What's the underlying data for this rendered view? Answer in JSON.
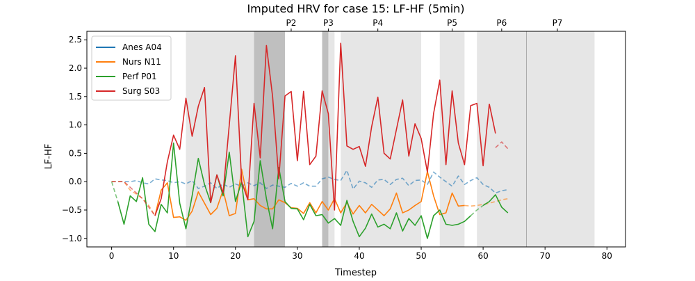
{
  "chart_data": {
    "type": "line",
    "title": "Imputed HRV for case 15: LF-HF (5min)",
    "xlabel": "Timestep",
    "ylabel": "LF-HF",
    "xlim": [
      -4,
      83
    ],
    "ylim": [
      -1.15,
      2.65
    ],
    "xticks": [
      0,
      10,
      20,
      30,
      40,
      50,
      60,
      70,
      80
    ],
    "yticks": [
      -1.0,
      -0.5,
      0.0,
      0.5,
      1.0,
      1.5,
      2.0,
      2.5
    ],
    "ytick_labels": [
      "−1.0",
      "−0.5",
      "0.0",
      "0.5",
      "1.0",
      "1.5",
      "2.0",
      "2.5"
    ],
    "legend_position": "upper-left",
    "phase_spans": [
      {
        "start": 12,
        "end": 28,
        "shade": "light"
      },
      {
        "start": 23,
        "end": 28,
        "shade": "dark"
      },
      {
        "start": 34,
        "end": 36,
        "shade": "light"
      },
      {
        "start": 34,
        "end": 35,
        "shade": "dark"
      },
      {
        "start": 37,
        "end": 50,
        "shade": "light"
      },
      {
        "start": 53,
        "end": 57,
        "shade": "light"
      },
      {
        "start": 59,
        "end": 67,
        "shade": "light"
      },
      {
        "start": 67,
        "end": 78,
        "shade": "light"
      }
    ],
    "phase_boundaries": [
      67
    ],
    "phase_labels": [
      {
        "label": "P2",
        "x": 29
      },
      {
        "label": "P3",
        "x": 35
      },
      {
        "label": "P4",
        "x": 43
      },
      {
        "label": "P5",
        "x": 55
      },
      {
        "label": "P6",
        "x": 63
      },
      {
        "label": "P7",
        "x": 72
      }
    ],
    "series": [
      {
        "name": "Anes A04",
        "color": "#1f77b4",
        "segments": [
          {
            "style": "dashed",
            "x": [
              0,
              1,
              2,
              3,
              4,
              5,
              6,
              7,
              8,
              9,
              10,
              11,
              12,
              13,
              14,
              15,
              16,
              17,
              18,
              19,
              20,
              21,
              22,
              23,
              24,
              25,
              26,
              27,
              28,
              29,
              30,
              31,
              32,
              33,
              34,
              35,
              36,
              37,
              38,
              39,
              40,
              41,
              42,
              43,
              44,
              45,
              46,
              47,
              48,
              49,
              50,
              51,
              52,
              53,
              54,
              55,
              56,
              57,
              58,
              59,
              60,
              61,
              62,
              63,
              64
            ],
            "y": [
              0.0,
              0.0,
              0.0,
              0.0,
              0.02,
              -0.02,
              -0.04,
              0.05,
              0.03,
              0.02,
              -0.02,
              0.0,
              -0.04,
              0.02,
              -0.12,
              -0.08,
              -0.02,
              -0.12,
              -0.04,
              -0.1,
              -0.04,
              -0.08,
              -0.02,
              -0.07,
              -0.02,
              -0.12,
              -0.06,
              -0.08,
              -0.1,
              -0.03,
              -0.08,
              -0.02,
              -0.08,
              -0.08,
              0.05,
              0.08,
              0.04,
              0.02,
              0.2,
              -0.13,
              0.01,
              -0.02,
              -0.1,
              0.03,
              0.04,
              -0.05,
              0.04,
              0.06,
              -0.07,
              0.02,
              0.03,
              -0.05,
              0.17,
              0.08,
              0.0,
              -0.08,
              0.1,
              -0.05,
              0.02,
              0.07,
              -0.05,
              -0.1,
              -0.2,
              -0.16,
              -0.14
            ]
          }
        ]
      },
      {
        "name": "Nurs N11",
        "color": "#ff7f0e",
        "segments": [
          {
            "style": "dashed",
            "x": [
              0,
              1,
              2,
              3,
              4,
              5,
              6,
              7
            ],
            "y": [
              0.0,
              0.0,
              0.0,
              -0.15,
              -0.22,
              -0.3,
              -0.42,
              -0.6
            ]
          },
          {
            "style": "solid",
            "x": [
              7,
              8,
              9,
              10,
              11,
              12,
              13,
              14,
              15,
              16,
              17,
              18,
              19,
              20,
              21,
              22,
              23,
              24,
              25,
              26,
              27,
              28,
              29,
              30,
              31,
              32,
              33,
              34,
              35,
              36,
              37,
              38,
              39,
              40,
              41,
              42,
              43,
              44,
              45,
              46,
              47,
              48,
              49,
              50,
              51,
              52,
              53,
              54,
              55,
              56,
              57
            ],
            "y": [
              -0.6,
              -0.15,
              -0.02,
              -0.63,
              -0.62,
              -0.68,
              -0.52,
              -0.18,
              -0.38,
              -0.58,
              -0.47,
              -0.15,
              -0.6,
              -0.56,
              0.22,
              -0.32,
              -0.3,
              -0.42,
              -0.48,
              -0.48,
              -0.32,
              -0.37,
              -0.46,
              -0.47,
              -0.56,
              -0.37,
              -0.55,
              -0.35,
              -0.5,
              -0.3,
              -0.55,
              -0.37,
              -0.57,
              -0.42,
              -0.55,
              -0.4,
              -0.5,
              -0.6,
              -0.48,
              -0.2,
              -0.55,
              -0.5,
              -0.42,
              -0.35,
              0.18,
              -0.25,
              -0.58,
              -0.55,
              -0.2,
              -0.43,
              -0.42
            ]
          },
          {
            "style": "dashed",
            "x": [
              57,
              58,
              59,
              60,
              61,
              62,
              63,
              64
            ],
            "y": [
              -0.42,
              -0.43,
              -0.42,
              -0.4,
              -0.38,
              -0.35,
              -0.32,
              -0.3
            ]
          }
        ]
      },
      {
        "name": "Perf P01",
        "color": "#2ca02c",
        "segments": [
          {
            "style": "dashed",
            "x": [
              0,
              1
            ],
            "y": [
              0.0,
              -0.35
            ]
          },
          {
            "style": "solid",
            "x": [
              1,
              2,
              3,
              4,
              5,
              6,
              7,
              8,
              9,
              10,
              11,
              12,
              13,
              14,
              15,
              16,
              17,
              18,
              19,
              20,
              21,
              22,
              23,
              24,
              25,
              26,
              27,
              28,
              29,
              30,
              31,
              32,
              33,
              34,
              35,
              36,
              37,
              38,
              39,
              40,
              41,
              42,
              43,
              44,
              45,
              46,
              47,
              48,
              49,
              50,
              51,
              52,
              53,
              54,
              55,
              56,
              57,
              58
            ],
            "y": [
              -0.35,
              -0.75,
              -0.25,
              -0.35,
              0.07,
              -0.75,
              -0.88,
              -0.4,
              -0.55,
              0.68,
              -0.38,
              -0.83,
              -0.25,
              0.41,
              -0.05,
              -0.37,
              0.12,
              -0.25,
              0.52,
              -0.35,
              0.0,
              -0.97,
              -0.7,
              0.37,
              -0.3,
              -0.83,
              0.25,
              -0.35,
              -0.47,
              -0.48,
              -0.67,
              -0.4,
              -0.6,
              -0.58,
              -0.73,
              -0.65,
              -0.77,
              -0.33,
              -0.7,
              -0.97,
              -0.82,
              -0.57,
              -0.8,
              -0.75,
              -0.83,
              -0.55,
              -0.87,
              -0.65,
              -0.77,
              -0.6,
              -1.0,
              -0.6,
              -0.5,
              -0.75,
              -0.77,
              -0.75,
              -0.7,
              -0.6
            ]
          },
          {
            "style": "dashed",
            "x": [
              58,
              59,
              60
            ],
            "y": [
              -0.6,
              -0.5,
              -0.42
            ]
          },
          {
            "style": "solid",
            "x": [
              60,
              61,
              62,
              63,
              64
            ],
            "y": [
              -0.42,
              -0.35,
              -0.23,
              -0.45,
              -0.55
            ]
          }
        ]
      },
      {
        "name": "Surg S03",
        "color": "#d62728",
        "segments": [
          {
            "style": "dashed",
            "x": [
              0,
              1,
              2,
              3,
              4,
              5,
              6,
              7
            ],
            "y": [
              0.0,
              0.0,
              0.0,
              -0.1,
              -0.2,
              -0.3,
              -0.45,
              -0.6
            ]
          },
          {
            "style": "solid",
            "x": [
              7,
              8,
              9,
              10,
              11,
              12,
              13,
              14,
              15,
              16,
              17,
              18,
              19,
              20,
              21,
              22,
              23,
              24,
              25,
              26,
              27,
              28,
              29,
              30,
              31,
              32,
              33,
              34,
              35,
              36,
              37,
              38,
              39,
              40,
              41,
              42,
              43,
              44,
              45,
              46,
              47,
              48,
              49,
              50,
              51,
              52,
              53,
              54,
              55,
              56,
              57,
              58,
              59,
              60,
              61
            ],
            "y": [
              -0.6,
              -0.3,
              0.35,
              0.82,
              0.57,
              1.47,
              0.8,
              1.33,
              1.66,
              -0.37,
              0.12,
              -0.2,
              1.0,
              2.22,
              0.0,
              -0.32,
              1.38,
              0.42,
              2.4,
              1.5,
              0.05,
              1.51,
              1.59,
              0.37,
              1.59,
              0.3,
              0.45,
              1.6,
              1.2,
              -0.5,
              2.44,
              0.63,
              0.57,
              0.62,
              0.27,
              0.97,
              1.49,
              0.5,
              0.4,
              0.92,
              1.44,
              0.45,
              1.02,
              0.76,
              0.17,
              1.2,
              1.79,
              0.3,
              1.6,
              0.68,
              0.3,
              1.34,
              1.38,
              0.28,
              1.37
            ]
          },
          {
            "style": "solid",
            "x": [
              61,
              62
            ],
            "y": [
              1.37,
              0.85
            ]
          },
          {
            "style": "dashed",
            "x": [
              62,
              63,
              64
            ],
            "y": [
              0.6,
              0.7,
              0.58
            ]
          }
        ]
      }
    ]
  }
}
